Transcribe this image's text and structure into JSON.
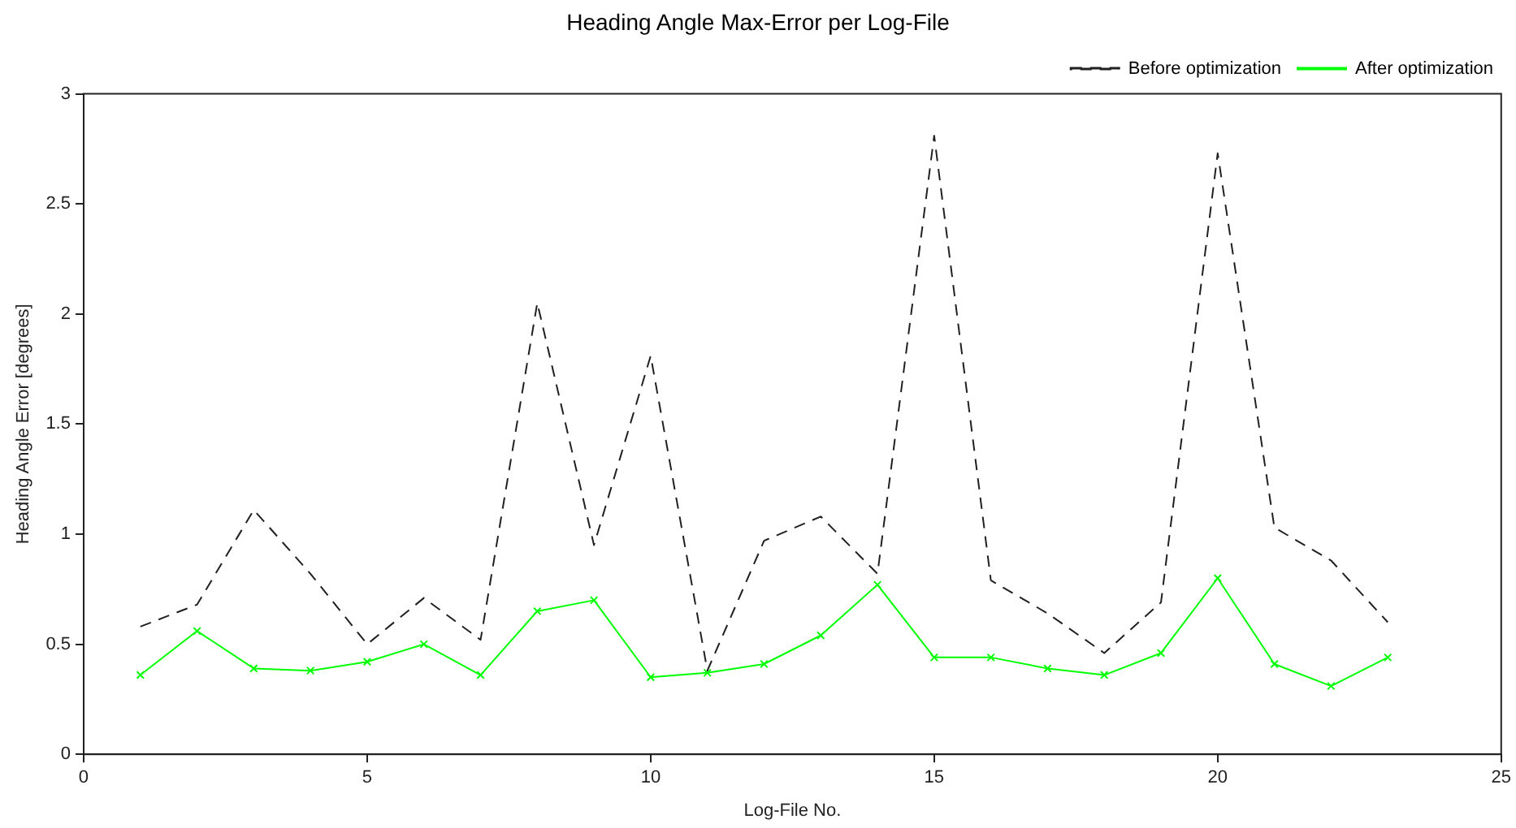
{
  "chart_data": {
    "type": "line",
    "title": "Heading Angle Max-Error per Log-File",
    "xlabel": "Log-File No.",
    "ylabel": "Heading Angle Error [degrees]",
    "x": [
      1,
      2,
      3,
      4,
      5,
      6,
      7,
      8,
      9,
      10,
      11,
      12,
      13,
      14,
      15,
      16,
      17,
      18,
      19,
      20,
      21,
      22,
      23
    ],
    "series": [
      {
        "name": "Before optimization",
        "color": "#202020",
        "line_style": "dashed",
        "marker": "none",
        "values": [
          0.58,
          0.68,
          1.11,
          0.82,
          0.5,
          0.71,
          0.52,
          2.05,
          0.95,
          1.81,
          0.38,
          0.97,
          1.08,
          0.82,
          2.81,
          0.79,
          0.64,
          0.46,
          0.69,
          2.73,
          1.03,
          0.88,
          0.6
        ]
      },
      {
        "name": "After optimization",
        "color": "#00ff00",
        "line_style": "solid",
        "marker": "cross",
        "values": [
          0.36,
          0.56,
          0.39,
          0.38,
          0.42,
          0.5,
          0.36,
          0.65,
          0.7,
          0.35,
          0.37,
          0.41,
          0.54,
          0.77,
          0.44,
          0.44,
          0.39,
          0.36,
          0.46,
          0.8,
          0.41,
          0.31,
          0.44
        ]
      }
    ],
    "xlim": [
      0,
      25
    ],
    "xticks": [
      0,
      5,
      10,
      15,
      20,
      25
    ],
    "ylim": [
      0,
      3
    ],
    "yticks": [
      0,
      0.5,
      1,
      1.5,
      2,
      2.5,
      3
    ],
    "grid": false,
    "legend": "top right"
  }
}
